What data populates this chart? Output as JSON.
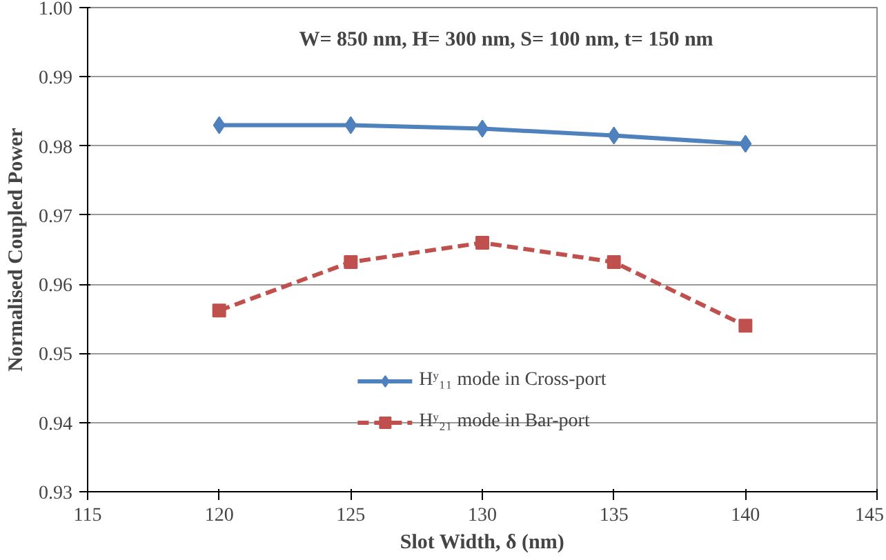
{
  "chart_data": {
    "type": "line",
    "xlabel": "Slot Width, δ (nm)",
    "ylabel": "Normalised Coupled Power",
    "annotations": [
      "W= 850 nm,  H= 300 nm,  S= 100 nm,  t= 150 nm"
    ],
    "x": [
      120,
      125,
      130,
      135,
      140
    ],
    "series": [
      {
        "name": "Hʸ₁₁ mode in Cross-port",
        "color": "#4f81bd",
        "values": [
          0.983,
          0.983,
          0.9825,
          0.9815,
          0.9803
        ],
        "marker": "diamond",
        "line_style": "solid"
      },
      {
        "name": "Hʸ₂₁ mode in Bar-port",
        "color": "#c0504d",
        "values": [
          0.9562,
          0.9632,
          0.966,
          0.9632,
          0.954
        ],
        "marker": "square",
        "line_style": "dashed"
      }
    ],
    "xlim": [
      115,
      145
    ],
    "xticks": [
      115,
      120,
      125,
      130,
      135,
      140,
      145
    ],
    "ylim": [
      0.93,
      1.0
    ],
    "yticks": [
      0.93,
      0.94,
      0.95,
      0.96,
      0.97,
      0.98,
      0.99,
      {
        "value": 1.0,
        "label": "1.00"
      }
    ],
    "grid": "y",
    "legend": "bottom"
  }
}
